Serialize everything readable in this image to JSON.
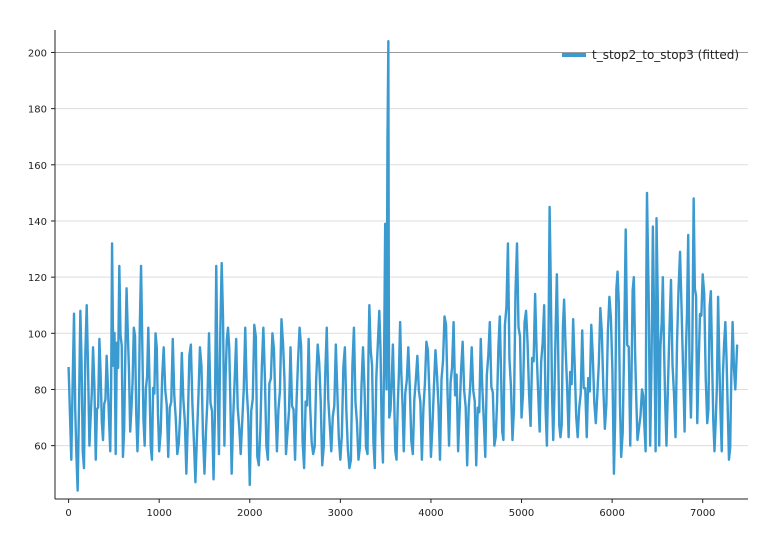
{
  "chart_data": {
    "type": "line",
    "title": "",
    "xlabel": "",
    "ylabel": "",
    "xlim": [
      -150,
      7500
    ],
    "ylim": [
      41,
      208
    ],
    "x_ticks": [
      0,
      1000,
      2000,
      3000,
      4000,
      5000,
      6000,
      7000
    ],
    "y_ticks": [
      60,
      80,
      100,
      120,
      140,
      160,
      180,
      200
    ],
    "grid": "horizontal",
    "legend_position": "top-right",
    "series": [
      {
        "name": "t_stop2_to_stop3 (fitted)",
        "color": "#3b9ad0",
        "x_step": 15,
        "x_start": 0,
        "peaks": [
          [
            0,
            88
          ],
          [
            30,
            55
          ],
          [
            60,
            107
          ],
          [
            100,
            44
          ],
          [
            130,
            108
          ],
          [
            170,
            52
          ],
          [
            200,
            110
          ],
          [
            230,
            60
          ],
          [
            270,
            95
          ],
          [
            300,
            55
          ],
          [
            340,
            98
          ],
          [
            380,
            62
          ],
          [
            420,
            92
          ],
          [
            460,
            58
          ],
          [
            480,
            132
          ],
          [
            520,
            57
          ],
          [
            560,
            124
          ],
          [
            600,
            56
          ],
          [
            640,
            116
          ],
          [
            680,
            65
          ],
          [
            720,
            102
          ],
          [
            760,
            58
          ],
          [
            800,
            124
          ],
          [
            840,
            60
          ],
          [
            880,
            102
          ],
          [
            920,
            55
          ],
          [
            960,
            100
          ],
          [
            1000,
            58
          ],
          [
            1050,
            95
          ],
          [
            1100,
            56
          ],
          [
            1150,
            98
          ],
          [
            1200,
            57
          ],
          [
            1250,
            93
          ],
          [
            1300,
            50
          ],
          [
            1350,
            96
          ],
          [
            1400,
            47
          ],
          [
            1450,
            95
          ],
          [
            1500,
            50
          ],
          [
            1550,
            100
          ],
          [
            1600,
            48
          ],
          [
            1630,
            124
          ],
          [
            1660,
            57
          ],
          [
            1690,
            125
          ],
          [
            1720,
            60
          ],
          [
            1760,
            102
          ],
          [
            1800,
            50
          ],
          [
            1850,
            98
          ],
          [
            1900,
            57
          ],
          [
            1950,
            102
          ],
          [
            2000,
            46
          ],
          [
            2050,
            103
          ],
          [
            2100,
            53
          ],
          [
            2150,
            102
          ],
          [
            2200,
            55
          ],
          [
            2250,
            100
          ],
          [
            2300,
            58
          ],
          [
            2350,
            105
          ],
          [
            2400,
            57
          ],
          [
            2450,
            95
          ],
          [
            2500,
            55
          ],
          [
            2550,
            102
          ],
          [
            2600,
            52
          ],
          [
            2650,
            98
          ],
          [
            2700,
            57
          ],
          [
            2750,
            96
          ],
          [
            2800,
            53
          ],
          [
            2850,
            102
          ],
          [
            2900,
            58
          ],
          [
            2950,
            96
          ],
          [
            3000,
            55
          ],
          [
            3050,
            95
          ],
          [
            3100,
            52
          ],
          [
            3150,
            102
          ],
          [
            3200,
            55
          ],
          [
            3250,
            95
          ],
          [
            3300,
            57
          ],
          [
            3320,
            110
          ],
          [
            3380,
            52
          ],
          [
            3430,
            108
          ],
          [
            3470,
            54
          ],
          [
            3495,
            139
          ],
          [
            3510,
            80
          ],
          [
            3530,
            204
          ],
          [
            3540,
            70
          ],
          [
            3580,
            96
          ],
          [
            3620,
            55
          ],
          [
            3660,
            104
          ],
          [
            3700,
            58
          ],
          [
            3750,
            95
          ],
          [
            3800,
            57
          ],
          [
            3850,
            92
          ],
          [
            3900,
            55
          ],
          [
            3950,
            97
          ],
          [
            4000,
            56
          ],
          [
            4050,
            94
          ],
          [
            4100,
            55
          ],
          [
            4150,
            106
          ],
          [
            4200,
            60
          ],
          [
            4250,
            104
          ],
          [
            4300,
            58
          ],
          [
            4350,
            97
          ],
          [
            4400,
            53
          ],
          [
            4450,
            95
          ],
          [
            4500,
            53
          ],
          [
            4550,
            98
          ],
          [
            4600,
            56
          ],
          [
            4650,
            104
          ],
          [
            4700,
            60
          ],
          [
            4760,
            106
          ],
          [
            4800,
            62
          ],
          [
            4850,
            132
          ],
          [
            4900,
            62
          ],
          [
            4950,
            132
          ],
          [
            5000,
            70
          ],
          [
            5050,
            108
          ],
          [
            5100,
            67
          ],
          [
            5150,
            114
          ],
          [
            5200,
            65
          ],
          [
            5250,
            110
          ],
          [
            5280,
            60
          ],
          [
            5310,
            145
          ],
          [
            5350,
            62
          ],
          [
            5390,
            121
          ],
          [
            5430,
            63
          ],
          [
            5470,
            112
          ],
          [
            5520,
            63
          ],
          [
            5570,
            105
          ],
          [
            5620,
            63
          ],
          [
            5670,
            101
          ],
          [
            5720,
            63
          ],
          [
            5770,
            103
          ],
          [
            5820,
            68
          ],
          [
            5870,
            109
          ],
          [
            5920,
            66
          ],
          [
            5970,
            113
          ],
          [
            6020,
            50
          ],
          [
            6060,
            122
          ],
          [
            6100,
            56
          ],
          [
            6150,
            137
          ],
          [
            6200,
            60
          ],
          [
            6240,
            120
          ],
          [
            6280,
            62
          ],
          [
            6330,
            80
          ],
          [
            6370,
            58
          ],
          [
            6385,
            150
          ],
          [
            6420,
            60
          ],
          [
            6450,
            138
          ],
          [
            6480,
            58
          ],
          [
            6490,
            141
          ],
          [
            6520,
            60
          ],
          [
            6560,
            120
          ],
          [
            6600,
            60
          ],
          [
            6650,
            119
          ],
          [
            6700,
            63
          ],
          [
            6750,
            129
          ],
          [
            6800,
            65
          ],
          [
            6840,
            135
          ],
          [
            6870,
            70
          ],
          [
            6900,
            148
          ],
          [
            6940,
            68
          ],
          [
            7000,
            121
          ],
          [
            7050,
            68
          ],
          [
            7090,
            115
          ],
          [
            7130,
            58
          ],
          [
            7170,
            113
          ],
          [
            7210,
            58
          ],
          [
            7250,
            104
          ],
          [
            7290,
            55
          ],
          [
            7330,
            104
          ],
          [
            7360,
            80
          ],
          [
            7380,
            96
          ]
        ]
      }
    ]
  }
}
